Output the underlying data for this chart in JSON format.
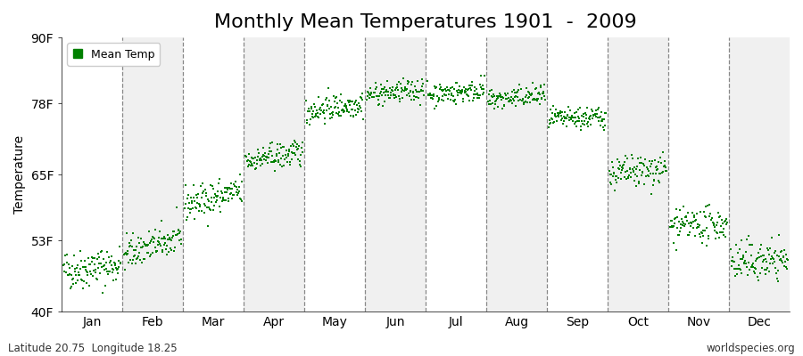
{
  "title": "Monthly Mean Temperatures 1901  -  2009",
  "ylabel": "Temperature",
  "xlabel_bottom": "Latitude 20.75  Longitude 18.25",
  "watermark": "worldspecies.org",
  "ytick_labels": [
    "40F",
    "53F",
    "65F",
    "78F",
    "90F"
  ],
  "ytick_values": [
    40,
    53,
    65,
    78,
    90
  ],
  "ylim": [
    40,
    90
  ],
  "months": [
    "Jan",
    "Feb",
    "Mar",
    "Apr",
    "May",
    "Jun",
    "Jul",
    "Aug",
    "Sep",
    "Oct",
    "Nov",
    "Dec"
  ],
  "dot_color": "#008000",
  "legend_label": "Mean Temp",
  "mean_temp_start": [
    47.5,
    50.5,
    59.5,
    67.5,
    76.5,
    79.5,
    79.5,
    78.5,
    75.0,
    65.0,
    55.5,
    49.0
  ],
  "mean_temp_end": [
    48.5,
    53.5,
    62.0,
    69.0,
    78.0,
    80.5,
    80.5,
    79.5,
    75.5,
    66.0,
    56.0,
    49.5
  ],
  "spread": [
    1.8,
    1.5,
    1.5,
    1.2,
    1.2,
    1.0,
    1.0,
    1.0,
    1.0,
    1.5,
    1.5,
    1.8
  ],
  "n_years": 109,
  "bg_colors": [
    "#ffffff",
    "#f0f0f0"
  ],
  "title_fontsize": 16,
  "axis_fontsize": 10,
  "legend_fontsize": 9
}
